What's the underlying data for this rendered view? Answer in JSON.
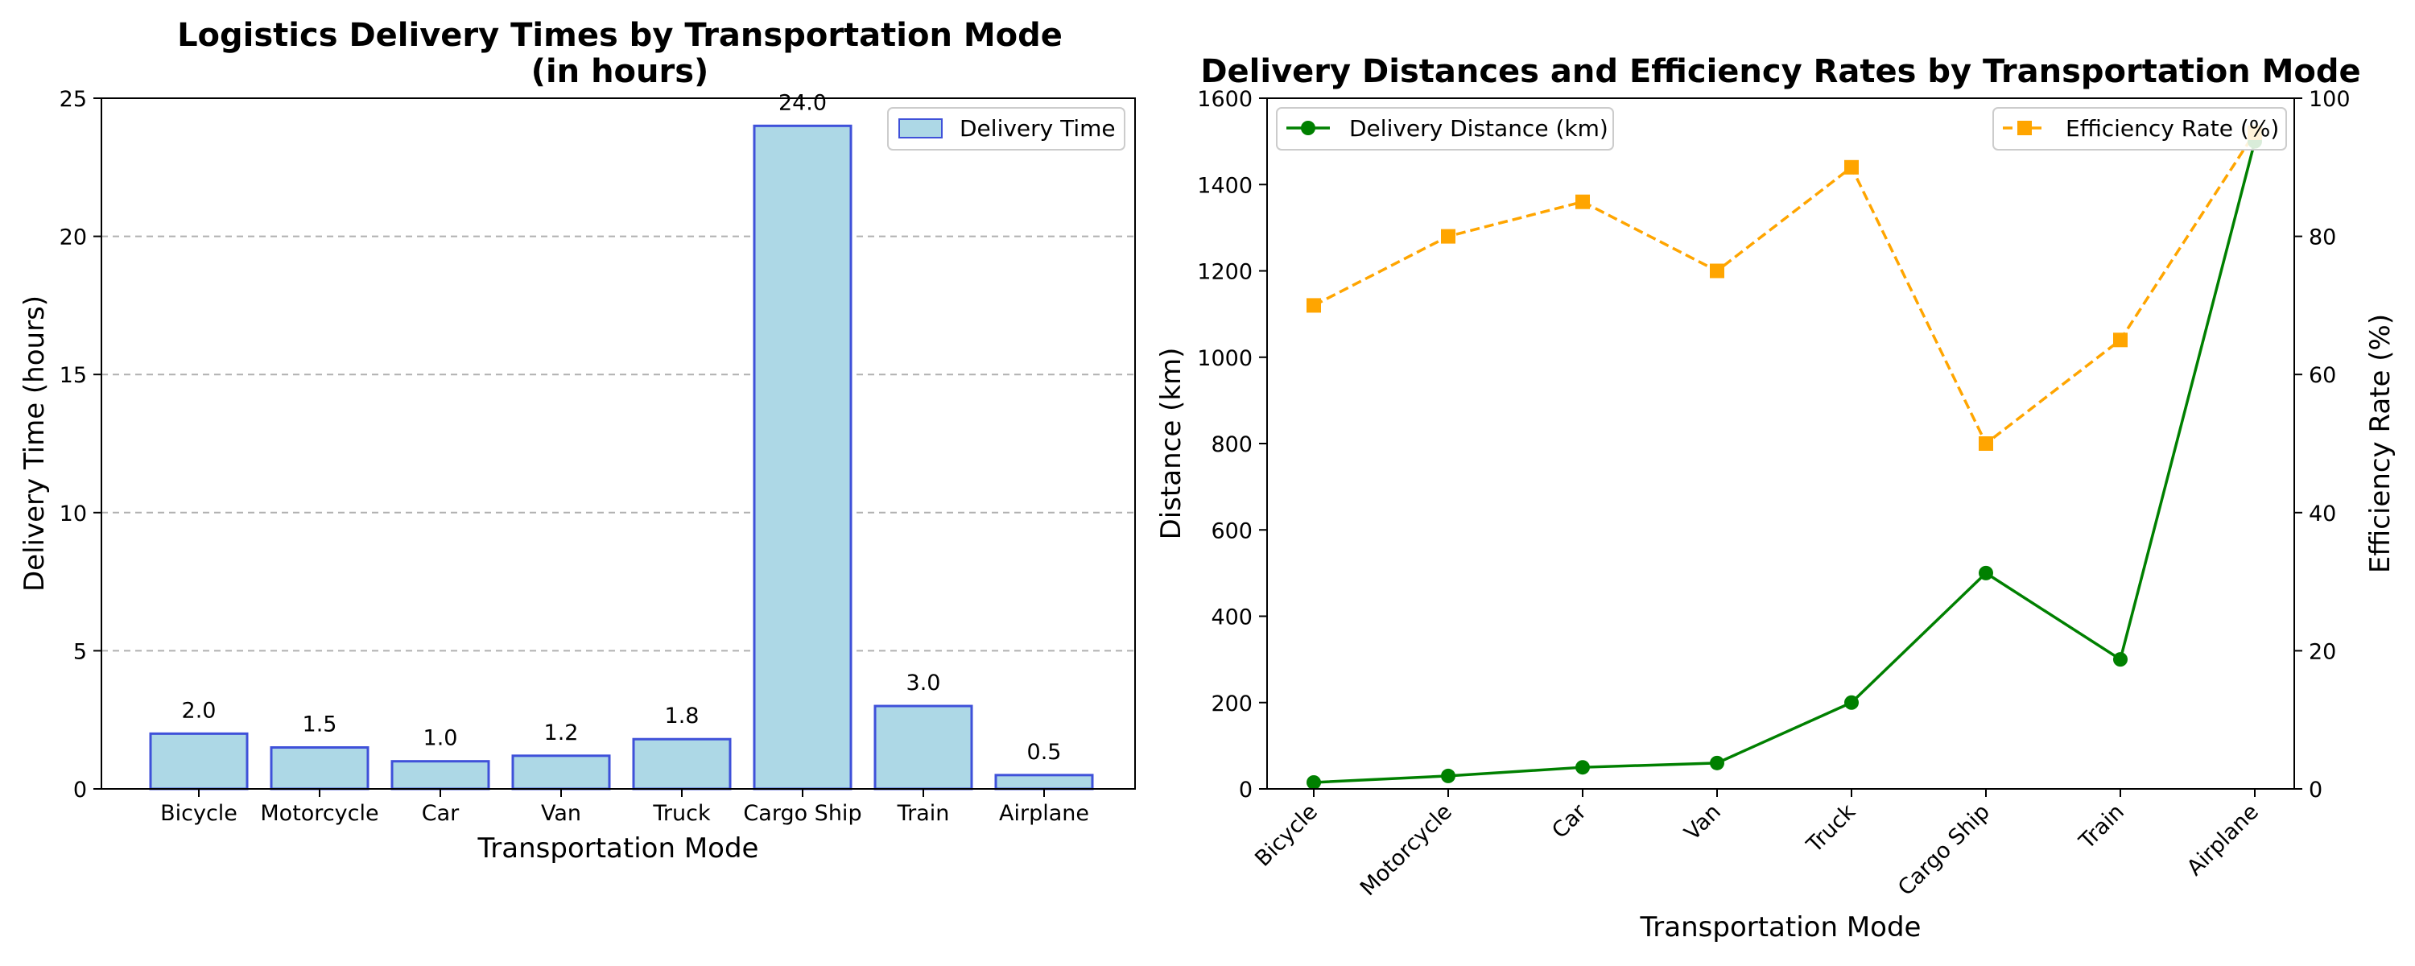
{
  "chart_data": [
    {
      "type": "bar",
      "title": "Logistics Delivery Times by Transportation Mode",
      "subtitle": "(in hours)",
      "xlabel": "Transportation Mode",
      "ylabel": "Delivery Time (hours)",
      "categories": [
        "Bicycle",
        "Motorcycle",
        "Car",
        "Van",
        "Truck",
        "Cargo Ship",
        "Train",
        "Airplane"
      ],
      "series": [
        {
          "name": "Delivery Time",
          "values": [
            2.0,
            1.5,
            1.0,
            1.2,
            1.8,
            24.0,
            3.0,
            0.5
          ],
          "color": "#add8e6",
          "edge_color": "#3f51d9"
        }
      ],
      "data_labels": [
        "2.0",
        "1.5",
        "1.0",
        "1.2",
        "1.8",
        "24.0",
        "3.0",
        "0.5"
      ],
      "ylim": [
        0,
        25
      ],
      "yticks": [
        0,
        5,
        10,
        15,
        20,
        25
      ],
      "grid": "y-dashed",
      "legend": "top-right"
    },
    {
      "type": "line",
      "title": "Delivery Distances and Efficiency Rates by Transportation Mode",
      "xlabel": "Transportation Mode",
      "ylabel": "Distance (km)",
      "ylabel_right": "Efficiency Rate (%)",
      "categories": [
        "Bicycle",
        "Motorcycle",
        "Car",
        "Van",
        "Truck",
        "Cargo Ship",
        "Train",
        "Airplane"
      ],
      "series": [
        {
          "name": "Delivery Distance (km)",
          "values": [
            15,
            30,
            50,
            60,
            200,
            500,
            300,
            1500
          ],
          "axis": "left",
          "color": "#008000",
          "marker": "circle",
          "line": "solid"
        },
        {
          "name": "Efficiency Rate (%)",
          "values": [
            70,
            80,
            85,
            75,
            90,
            50,
            65,
            95
          ],
          "axis": "right",
          "color": "#ffa500",
          "marker": "square",
          "line": "dashed"
        }
      ],
      "ylim": [
        0,
        1600
      ],
      "yticks": [
        0,
        200,
        400,
        600,
        800,
        1000,
        1200,
        1400,
        1600
      ],
      "ylim_right": [
        0,
        100
      ],
      "yticks_right": [
        0,
        20,
        40,
        60,
        80,
        100
      ],
      "grid": "off",
      "legend_left": "top-left",
      "legend_right": "top-right"
    }
  ]
}
